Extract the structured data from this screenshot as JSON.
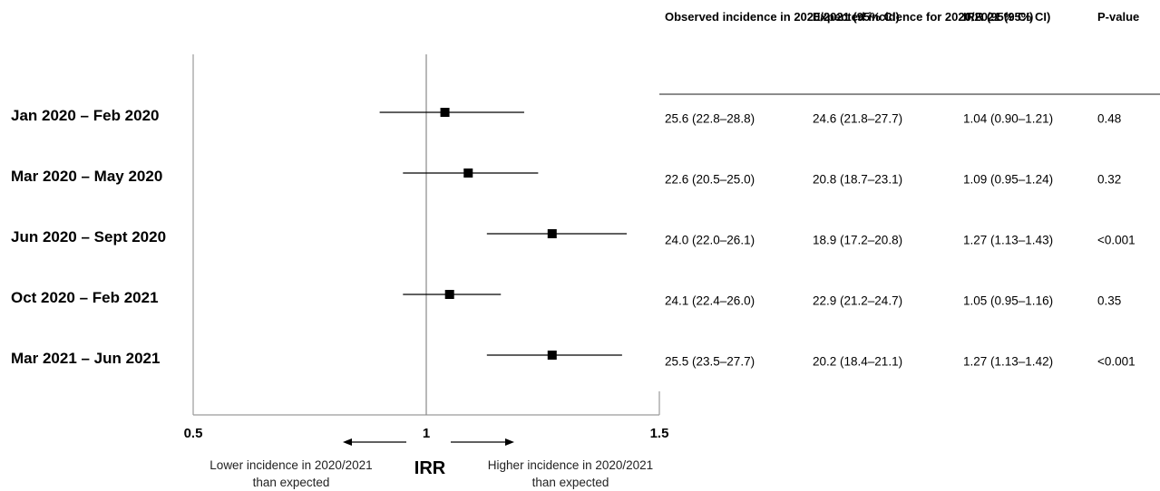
{
  "chart_data": {
    "type": "forest",
    "xlabel": "IRR",
    "xlim": [
      0.5,
      1.5
    ],
    "xticks": [
      "0.5",
      "1",
      "1.5"
    ],
    "reference_line": 1,
    "direction_labels": {
      "left": "Lower incidence in 2020/2021 than expected",
      "right": "Higher incidence in 2020/2021 than expected"
    },
    "columns": [
      "Observed incidence in 2020/2021 (95% CI)",
      "Expected incidence for 2020/2021 (95% CI)",
      "IRR (95% CI)",
      "P-value"
    ],
    "rows": [
      {
        "label": "Jan 2020 – Feb 2020",
        "irr": 1.04,
        "lo": 0.9,
        "hi": 1.21,
        "observed": "25.6 (22.8–28.8)",
        "expected": "24.6 (21.8–27.7)",
        "irr_text": "1.04 (0.90–1.21)",
        "p": "0.48"
      },
      {
        "label": "Mar 2020 – May 2020",
        "irr": 1.09,
        "lo": 0.95,
        "hi": 1.24,
        "observed": "22.6 (20.5–25.0)",
        "expected": "20.8 (18.7–23.1)",
        "irr_text": "1.09 (0.95–1.24)",
        "p": "0.32"
      },
      {
        "label": "Jun 2020 – Sept 2020",
        "irr": 1.27,
        "lo": 1.13,
        "hi": 1.43,
        "observed": "24.0 (22.0–26.1)",
        "expected": "18.9 (17.2–20.8)",
        "irr_text": "1.27 (1.13–1.43)",
        "p": "<0.001"
      },
      {
        "label": "Oct 2020 – Feb 2021",
        "irr": 1.05,
        "lo": 0.95,
        "hi": 1.16,
        "observed": "24.1 (22.4–26.0)",
        "expected": "22.9 (21.2–24.7)",
        "irr_text": "1.05 (0.95–1.16)",
        "p": "0.35"
      },
      {
        "label": "Mar 2021 – Jun 2021",
        "irr": 1.27,
        "lo": 1.13,
        "hi": 1.42,
        "observed": "25.5 (23.5–27.7)",
        "expected": "20.2 (18.4–21.1)",
        "irr_text": "1.27 (1.13–1.42)",
        "p": "<0.001"
      }
    ]
  }
}
